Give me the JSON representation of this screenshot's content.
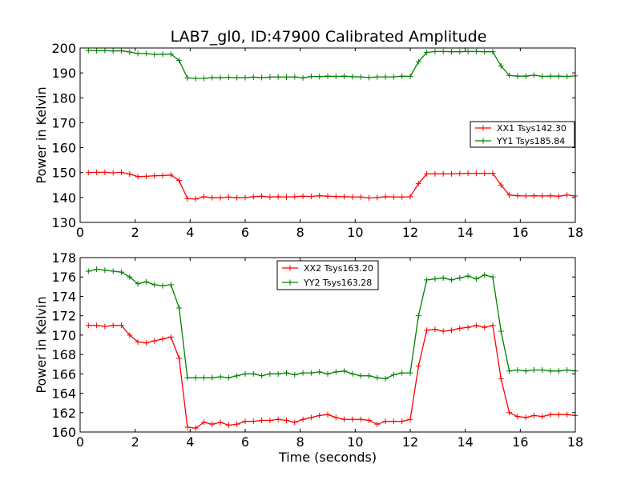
{
  "title": "LAB7_gl0, ID:47900 Calibrated Amplitude",
  "colors": {
    "red": "#ff0000",
    "green": "#008000",
    "axis": "#000000"
  },
  "chart_data": [
    {
      "type": "line",
      "xlabel": "",
      "ylabel": "Power in Kelvin",
      "xlim": [
        0,
        18
      ],
      "ylim": [
        130,
        200
      ],
      "xticks": [
        0,
        2,
        4,
        6,
        8,
        10,
        12,
        14,
        16,
        18
      ],
      "yticks": [
        130,
        140,
        150,
        160,
        170,
        180,
        190,
        200
      ],
      "legend_position": "center-right",
      "x": [
        0.3,
        0.6,
        0.9,
        1.2,
        1.5,
        1.8,
        2.1,
        2.4,
        2.7,
        3.0,
        3.3,
        3.6,
        3.9,
        4.2,
        4.5,
        4.8,
        5.1,
        5.4,
        5.7,
        6.0,
        6.3,
        6.6,
        6.9,
        7.2,
        7.5,
        7.8,
        8.1,
        8.4,
        8.7,
        9.0,
        9.3,
        9.6,
        9.9,
        10.2,
        10.5,
        10.8,
        11.1,
        11.4,
        11.7,
        12.0,
        12.3,
        12.6,
        12.9,
        13.2,
        13.5,
        13.8,
        14.1,
        14.4,
        14.7,
        15.0,
        15.3,
        15.6,
        15.9,
        16.2,
        16.5,
        16.8,
        17.1,
        17.4,
        17.7,
        18.0
      ],
      "series": [
        {
          "name": "XX1 Tsys142.30",
          "color": "#ff0000",
          "values": [
            150.0,
            150.1,
            150.1,
            149.9,
            150.1,
            149.4,
            148.4,
            148.5,
            148.7,
            148.8,
            149.0,
            146.8,
            139.5,
            139.4,
            140.3,
            139.9,
            139.9,
            140.2,
            139.9,
            140.0,
            140.3,
            140.5,
            140.2,
            140.3,
            140.2,
            140.3,
            140.5,
            140.4,
            140.7,
            140.5,
            140.4,
            140.3,
            140.2,
            140.2,
            139.8,
            140.0,
            140.3,
            140.2,
            140.2,
            140.3,
            145.6,
            149.5,
            149.5,
            149.5,
            149.5,
            149.6,
            149.7,
            149.7,
            149.7,
            149.7,
            145.0,
            141.0,
            140.7,
            140.6,
            140.7,
            140.6,
            140.7,
            140.5,
            141.0,
            140.6
          ]
        },
        {
          "name": "YY1 Tsys185.84",
          "color": "#008000",
          "values": [
            199.0,
            198.9,
            199.0,
            198.8,
            198.9,
            198.4,
            197.8,
            197.8,
            197.4,
            197.5,
            197.6,
            195.0,
            188.0,
            187.8,
            187.8,
            188.1,
            188.1,
            188.2,
            188.1,
            188.1,
            188.3,
            188.1,
            188.3,
            188.4,
            188.3,
            188.4,
            188.0,
            188.6,
            188.5,
            188.7,
            188.6,
            188.7,
            188.5,
            188.4,
            188.1,
            188.4,
            188.4,
            188.4,
            188.7,
            188.6,
            194.5,
            198.2,
            198.6,
            198.6,
            198.5,
            198.5,
            198.6,
            198.6,
            198.5,
            198.5,
            192.8,
            189.0,
            188.7,
            188.7,
            189.1,
            188.6,
            188.7,
            188.7,
            188.6,
            188.8
          ]
        }
      ]
    },
    {
      "type": "line",
      "xlabel": "Time (seconds)",
      "ylabel": "Power in Kelvin",
      "xlim": [
        0,
        18
      ],
      "ylim": [
        160,
        178
      ],
      "xticks": [
        0,
        2,
        4,
        6,
        8,
        10,
        12,
        14,
        16,
        18
      ],
      "yticks": [
        160,
        162,
        164,
        166,
        168,
        170,
        172,
        174,
        176,
        178
      ],
      "legend_position": "upper-center",
      "x": [
        0.3,
        0.6,
        0.9,
        1.2,
        1.5,
        1.8,
        2.1,
        2.4,
        2.7,
        3.0,
        3.3,
        3.6,
        3.9,
        4.2,
        4.5,
        4.8,
        5.1,
        5.4,
        5.7,
        6.0,
        6.3,
        6.6,
        6.9,
        7.2,
        7.5,
        7.8,
        8.1,
        8.4,
        8.7,
        9.0,
        9.3,
        9.6,
        9.9,
        10.2,
        10.5,
        10.8,
        11.1,
        11.4,
        11.7,
        12.0,
        12.3,
        12.6,
        12.9,
        13.2,
        13.5,
        13.8,
        14.1,
        14.4,
        14.7,
        15.0,
        15.3,
        15.6,
        15.9,
        16.2,
        16.5,
        16.8,
        17.1,
        17.4,
        17.7,
        18.0
      ],
      "series": [
        {
          "name": "XX2 Tsys163.20",
          "color": "#ff0000",
          "values": [
            171.0,
            171.0,
            170.9,
            171.0,
            171.0,
            170.0,
            169.3,
            169.2,
            169.4,
            169.6,
            169.8,
            167.6,
            160.5,
            160.4,
            161.0,
            160.8,
            161.0,
            160.7,
            160.8,
            161.1,
            161.1,
            161.2,
            161.2,
            161.3,
            161.2,
            161.0,
            161.3,
            161.5,
            161.7,
            161.8,
            161.5,
            161.3,
            161.3,
            161.3,
            161.2,
            160.8,
            161.1,
            161.1,
            161.1,
            161.3,
            166.8,
            170.5,
            170.6,
            170.4,
            170.5,
            170.7,
            170.8,
            171.0,
            170.8,
            171.0,
            165.5,
            162.0,
            161.6,
            161.5,
            161.7,
            161.6,
            161.8,
            161.8,
            161.8,
            161.7
          ]
        },
        {
          "name": "YY2 Tsys163.28",
          "color": "#008000",
          "values": [
            176.6,
            176.8,
            176.7,
            176.6,
            176.5,
            176.0,
            175.3,
            175.5,
            175.2,
            175.1,
            175.2,
            172.8,
            165.6,
            165.6,
            165.6,
            165.6,
            165.7,
            165.6,
            165.8,
            166.0,
            166.0,
            165.8,
            166.0,
            166.0,
            166.1,
            165.9,
            166.1,
            166.1,
            166.2,
            166.0,
            166.2,
            166.3,
            166.0,
            165.8,
            165.8,
            165.6,
            165.5,
            165.9,
            166.1,
            166.1,
            172.0,
            175.7,
            175.8,
            175.9,
            175.7,
            175.9,
            176.1,
            175.8,
            176.2,
            176.0,
            170.4,
            166.3,
            166.4,
            166.3,
            166.4,
            166.4,
            166.3,
            166.3,
            166.4,
            166.3
          ]
        }
      ]
    }
  ]
}
